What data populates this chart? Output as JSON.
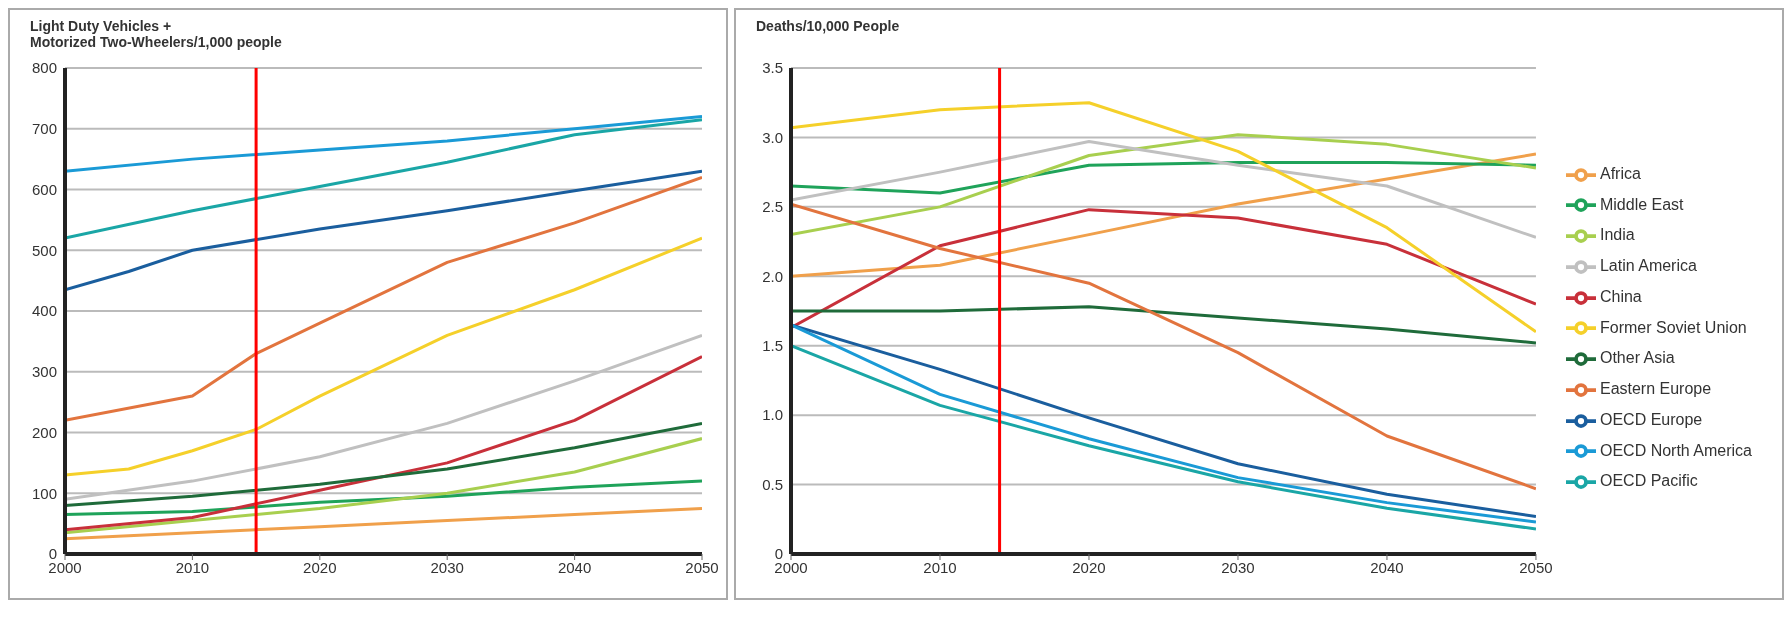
{
  "chart_data": [
    {
      "type": "line",
      "ylabel": "Light Duty Vehicles +\nMotorized Two-Wheelers/1,000 people",
      "xlim": [
        2000,
        2050
      ],
      "xticks": [
        2000,
        2010,
        2020,
        2030,
        2040,
        2050
      ],
      "ylim": [
        0,
        800
      ],
      "yticks": [
        0,
        100,
        200,
        300,
        400,
        500,
        600,
        700,
        800
      ],
      "grid": "y",
      "legend": false,
      "ref_lines": [
        {
          "axis": "x",
          "value": 2015,
          "color": "#ff0000"
        }
      ],
      "series": [
        {
          "color": "#f0a04b",
          "x": [
            2000,
            2010,
            2020,
            2030,
            2040,
            2050
          ],
          "values": [
            25,
            35,
            45,
            55,
            65,
            75
          ]
        },
        {
          "color": "#1fa35a",
          "x": [
            2000,
            2010,
            2020,
            2030,
            2040,
            2050
          ],
          "values": [
            65,
            70,
            85,
            95,
            110,
            120
          ]
        },
        {
          "color": "#a8cf4f",
          "x": [
            2000,
            2010,
            2020,
            2030,
            2040,
            2050
          ],
          "values": [
            35,
            55,
            75,
            100,
            135,
            190
          ]
        },
        {
          "color": "#c0c0c0",
          "x": [
            2000,
            2010,
            2020,
            2030,
            2040,
            2050
          ],
          "values": [
            90,
            120,
            160,
            215,
            285,
            360
          ]
        },
        {
          "color": "#c8303a",
          "x": [
            2000,
            2010,
            2020,
            2030,
            2040,
            2050
          ],
          "values": [
            40,
            60,
            105,
            150,
            220,
            325
          ]
        },
        {
          "color": "#f5d02a",
          "x": [
            2000,
            2005,
            2010,
            2015,
            2020,
            2030,
            2040,
            2050
          ],
          "values": [
            130,
            140,
            170,
            205,
            260,
            360,
            435,
            520
          ]
        },
        {
          "color": "#1f6b3a",
          "x": [
            2000,
            2010,
            2020,
            2030,
            2040,
            2050
          ],
          "values": [
            80,
            95,
            115,
            140,
            175,
            215
          ]
        },
        {
          "color": "#e2743e",
          "x": [
            2000,
            2010,
            2015,
            2020,
            2030,
            2040,
            2050
          ],
          "values": [
            220,
            260,
            330,
            380,
            480,
            545,
            620
          ]
        },
        {
          "color": "#1a5e9e",
          "x": [
            2000,
            2005,
            2010,
            2020,
            2030,
            2040,
            2050
          ],
          "values": [
            435,
            465,
            500,
            535,
            565,
            598,
            630
          ]
        },
        {
          "color": "#1a9ad6",
          "x": [
            2000,
            2010,
            2020,
            2030,
            2040,
            2050
          ],
          "values": [
            630,
            650,
            665,
            680,
            700,
            720
          ]
        },
        {
          "color": "#1aa6a6",
          "x": [
            2000,
            2010,
            2020,
            2030,
            2040,
            2050
          ],
          "values": [
            520,
            565,
            605,
            645,
            690,
            715
          ]
        }
      ]
    },
    {
      "type": "line",
      "ylabel": "Deaths/10,000 People",
      "xlim": [
        2000,
        2050
      ],
      "xticks": [
        2000,
        2010,
        2020,
        2030,
        2040,
        2050
      ],
      "ylim": [
        0,
        3.5
      ],
      "yticks": [
        0,
        0.5,
        {
          "value": 1,
          "label": "1.0"
        },
        1.5,
        {
          "value": 2,
          "label": "2.0"
        },
        2.5,
        {
          "value": 3,
          "label": "3.0"
        },
        3.5
      ],
      "grid": "y",
      "legend": "right",
      "ref_lines": [
        {
          "axis": "x",
          "value": 2014,
          "color": "#ff0000"
        }
      ],
      "series": [
        {
          "name": "Africa",
          "color": "#f0a04b",
          "x": [
            2000,
            2010,
            2020,
            2030,
            2040,
            2050
          ],
          "values": [
            2.0,
            2.08,
            2.3,
            2.52,
            2.7,
            2.88
          ]
        },
        {
          "name": "Middle East",
          "color": "#1fa35a",
          "x": [
            2000,
            2010,
            2020,
            2030,
            2040,
            2050
          ],
          "values": [
            2.65,
            2.6,
            2.8,
            2.82,
            2.82,
            2.8
          ]
        },
        {
          "name": "India",
          "color": "#a8cf4f",
          "x": [
            2000,
            2010,
            2020,
            2030,
            2040,
            2050
          ],
          "values": [
            2.3,
            2.5,
            2.87,
            3.02,
            2.95,
            2.78
          ]
        },
        {
          "name": "Latin America",
          "color": "#c0c0c0",
          "x": [
            2000,
            2010,
            2020,
            2030,
            2040,
            2050
          ],
          "values": [
            2.55,
            2.75,
            2.97,
            2.8,
            2.65,
            2.28
          ]
        },
        {
          "name": "China",
          "color": "#c8303a",
          "x": [
            2000,
            2010,
            2020,
            2030,
            2040,
            2050
          ],
          "values": [
            1.63,
            2.22,
            2.48,
            2.42,
            2.23,
            1.8
          ]
        },
        {
          "name": "Former Soviet Union",
          "color": "#f5d02a",
          "x": [
            2000,
            2010,
            2020,
            2030,
            2040,
            2050
          ],
          "values": [
            3.07,
            3.2,
            3.25,
            2.9,
            2.35,
            1.6
          ]
        },
        {
          "name": "Other Asia",
          "color": "#1f6b3a",
          "x": [
            2000,
            2010,
            2020,
            2030,
            2040,
            2050
          ],
          "values": [
            1.75,
            1.75,
            1.78,
            1.7,
            1.62,
            1.52
          ]
        },
        {
          "name": "Eastern Europe",
          "color": "#e2743e",
          "x": [
            2000,
            2010,
            2020,
            2030,
            2040,
            2050
          ],
          "values": [
            2.52,
            2.2,
            1.95,
            1.45,
            0.85,
            0.47
          ]
        },
        {
          "name": "OECD Europe",
          "color": "#1a5e9e",
          "x": [
            2000,
            2010,
            2020,
            2030,
            2040,
            2050
          ],
          "values": [
            1.65,
            1.33,
            0.98,
            0.65,
            0.43,
            0.27
          ]
        },
        {
          "name": "OECD North America",
          "color": "#1a9ad6",
          "x": [
            2000,
            2010,
            2020,
            2030,
            2040,
            2050
          ],
          "values": [
            1.65,
            1.15,
            0.83,
            0.55,
            0.37,
            0.23
          ]
        },
        {
          "name": "OECD Pacific",
          "color": "#1aa6a6",
          "x": [
            2000,
            2010,
            2020,
            2030,
            2040,
            2050
          ],
          "values": [
            1.5,
            1.07,
            0.78,
            0.52,
            0.33,
            0.18
          ]
        }
      ]
    }
  ]
}
